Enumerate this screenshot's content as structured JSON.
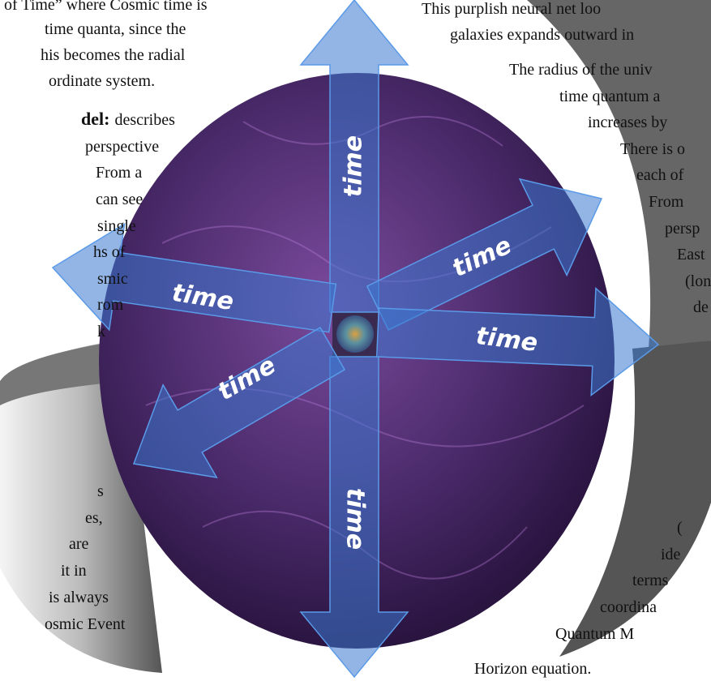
{
  "left_text": [
    "of Time” where Cosmic time is",
    "time quanta, since the",
    "his becomes the radial",
    "ordinate system.",
    {
      "bold": "del:",
      "text": "describes"
    },
    "perspective",
    "From a",
    "can see",
    "single",
    "hs of",
    "smic",
    "rom",
    "k"
  ],
  "left_lower_text": [
    "s",
    "es,",
    "are",
    "it in",
    "is always",
    "osmic Event"
  ],
  "right_text": [
    "This purplish neural net loo",
    "galaxies expands outward in",
    "The radius of the univ",
    "time quantum a",
    "increases by",
    "There is o",
    "each of",
    "From",
    "persp",
    "East",
    "(lon",
    "de"
  ],
  "right_lower_text": [
    "(",
    "ide",
    "terms",
    "coordina",
    "Quantum M",
    "Horizon equation."
  ],
  "arrow_labels": [
    "time",
    "time",
    "time",
    "time",
    "time",
    "time"
  ]
}
